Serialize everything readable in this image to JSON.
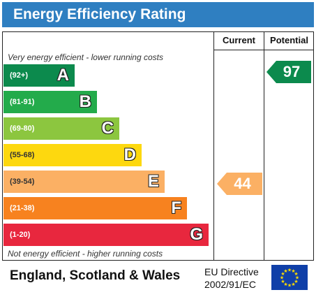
{
  "title": "Energy Efficiency Rating",
  "columns": {
    "current": "Current",
    "potential": "Potential"
  },
  "notes": {
    "top": "Very energy efficient - lower running costs",
    "bottom": "Not energy efficient - higher running costs"
  },
  "bands": [
    {
      "range": "(92+)",
      "letter": "A",
      "color": "#0c8a4d"
    },
    {
      "range": "(81-91)",
      "letter": "B",
      "color": "#23ab4b"
    },
    {
      "range": "(69-80)",
      "letter": "C",
      "color": "#8cc63f"
    },
    {
      "range": "(55-68)",
      "letter": "D",
      "color": "#fdd80f"
    },
    {
      "range": "(39-54)",
      "letter": "E",
      "color": "#fbb064"
    },
    {
      "range": "(21-38)",
      "letter": "F",
      "color": "#f7821f"
    },
    {
      "range": "(1-20)",
      "letter": "G",
      "color": "#e8273e"
    }
  ],
  "ratings": {
    "current": {
      "value": "44",
      "band": "E",
      "color": "#fbb064"
    },
    "potential": {
      "value": "97",
      "band": "A",
      "color": "#0c8a4d"
    }
  },
  "footer": {
    "region": "England, Scotland & Wales",
    "directive_line1": "EU Directive",
    "directive_line2": "2002/91/EC"
  },
  "colors": {
    "title_bar": "#2f7fc1",
    "eu_flag": "#0f3fa8",
    "eu_stars": "#ffdd00"
  },
  "icons": {
    "flag": "eu-flag-icon"
  }
}
